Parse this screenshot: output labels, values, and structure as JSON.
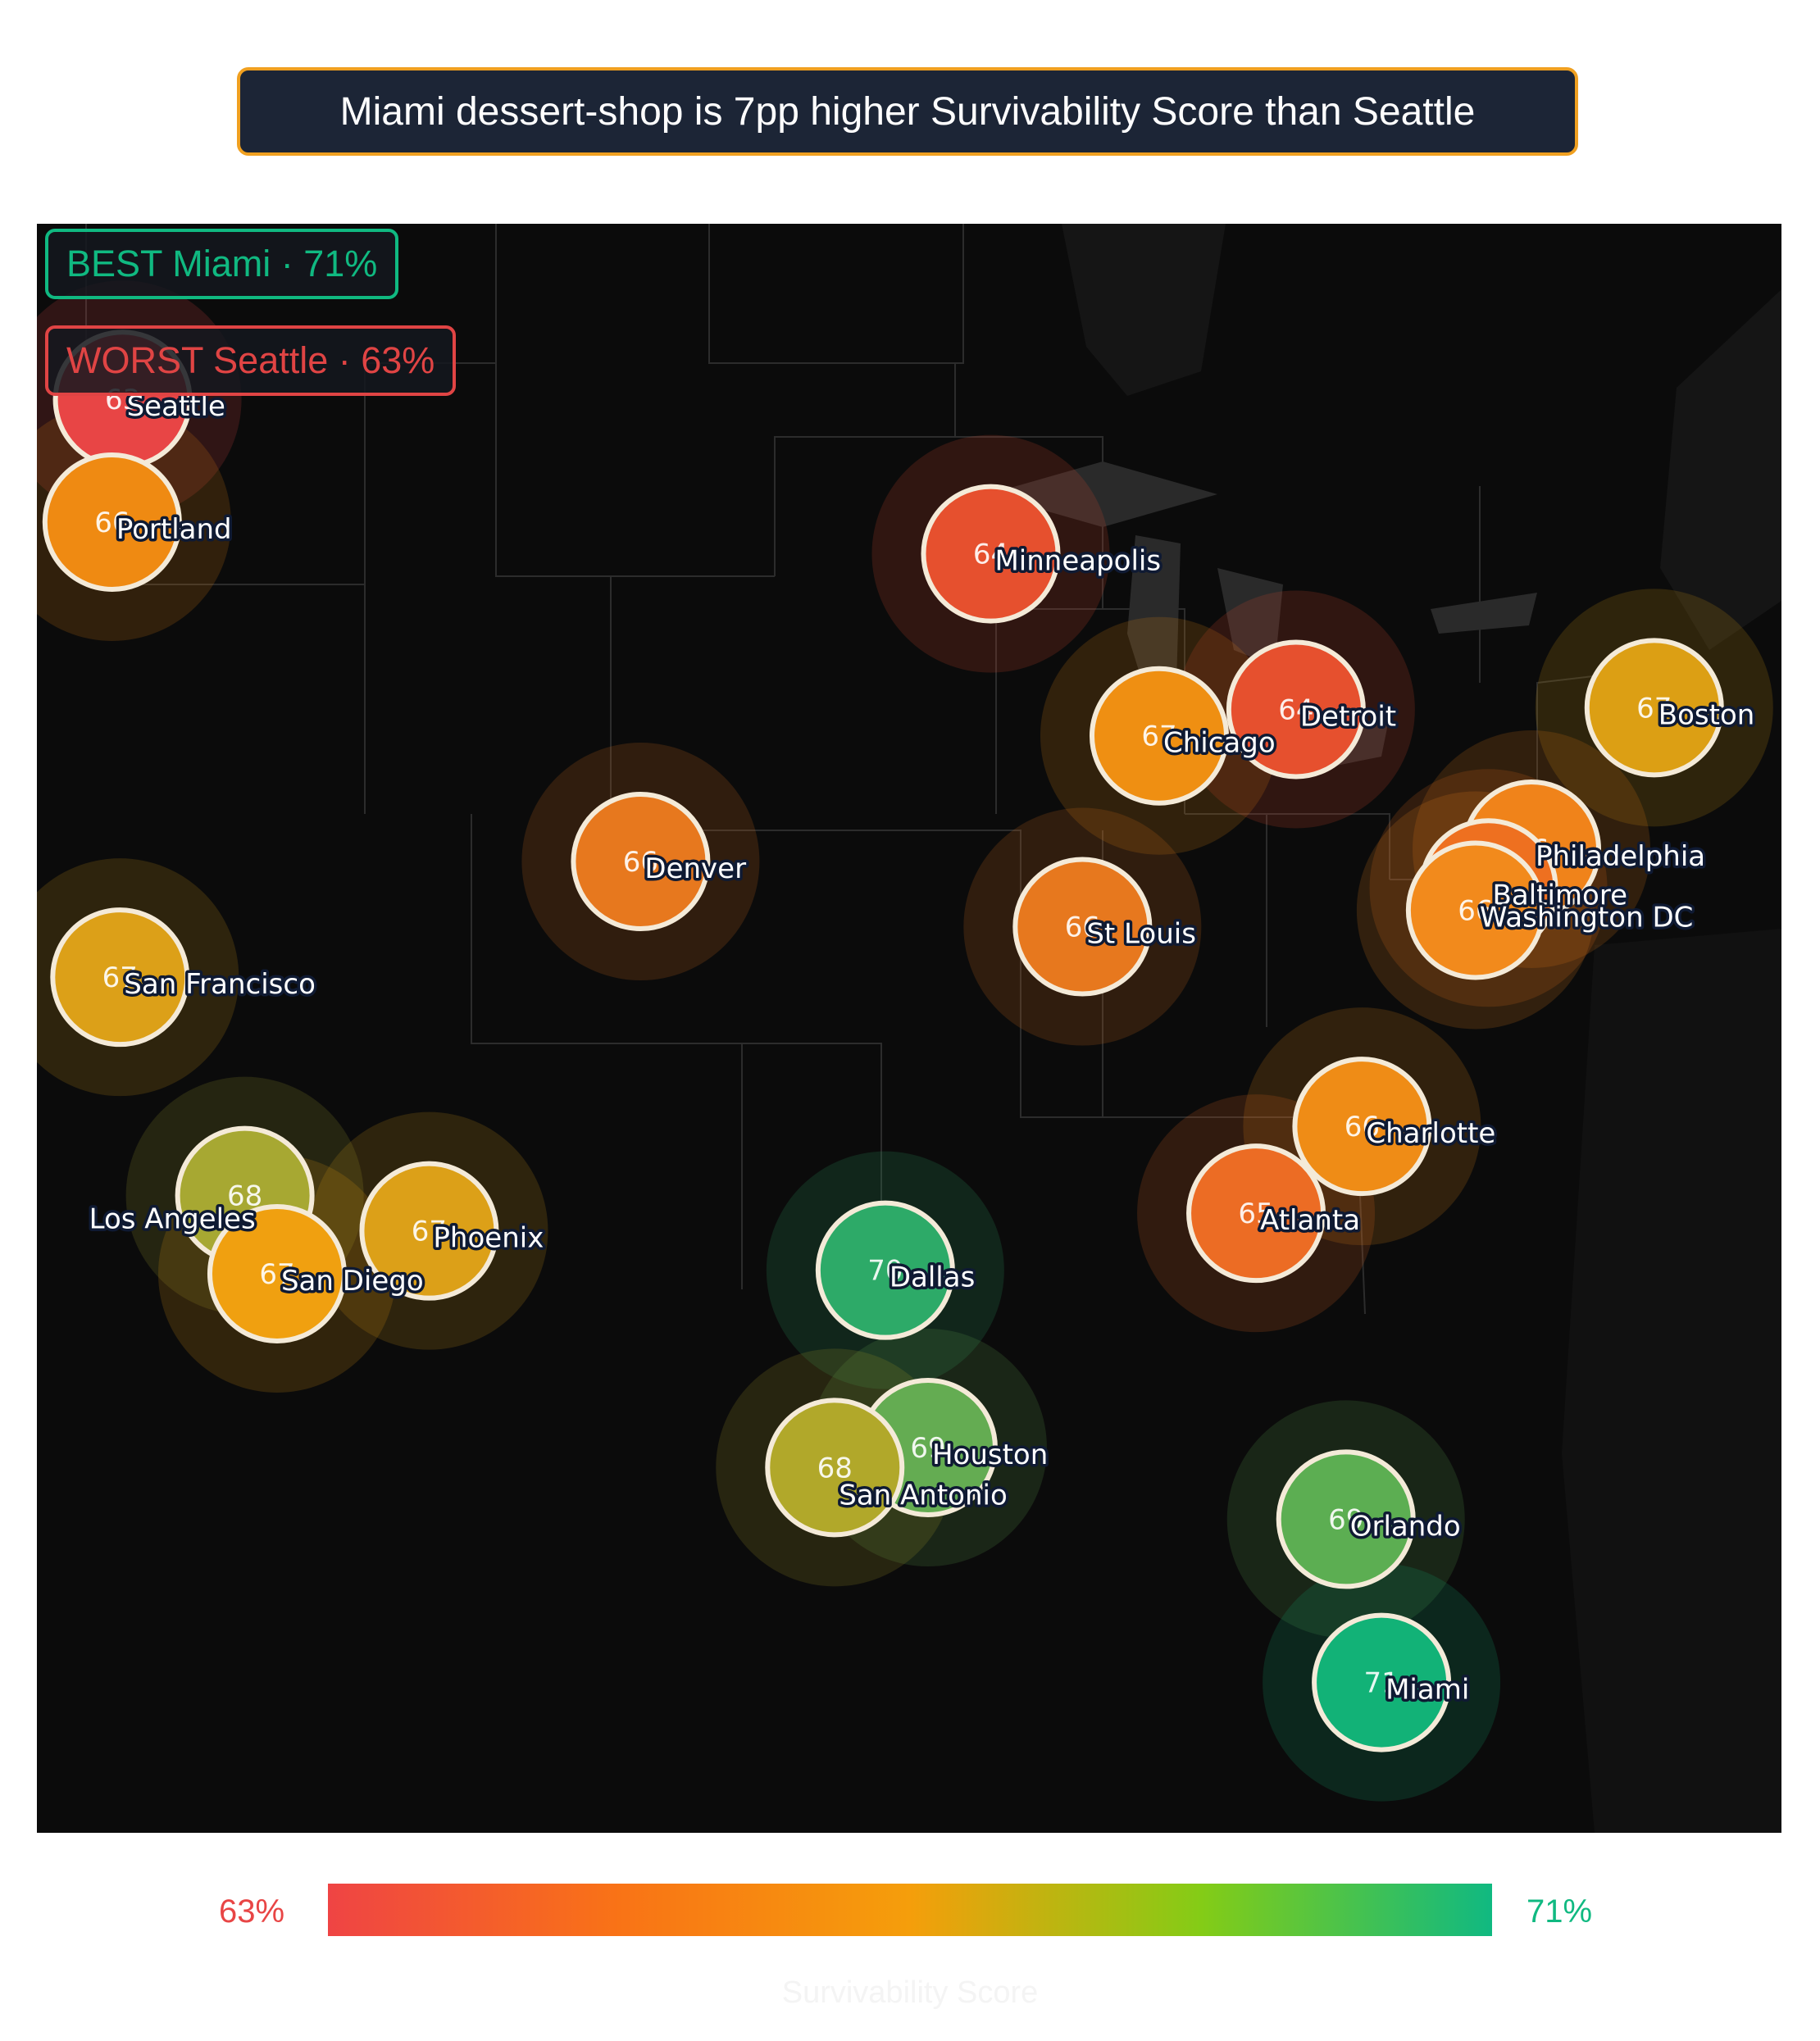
{
  "title": "Miami dessert-shop is 7pp higher Survivability Score than Seattle",
  "badges": {
    "best": "BEST  Miami · 71%",
    "worst": "WORST Seattle · 63%"
  },
  "colorbar": {
    "min_label": "63%",
    "max_label": "71%",
    "label": "Survivability Score",
    "min": 63,
    "max": 71
  },
  "colors": {
    "worst": "#ef4444",
    "mid": "#f59e0b",
    "best": "#10b981"
  },
  "chart_data": {
    "type": "scatter",
    "metric": "Survivability Score",
    "unit": "%",
    "points": [
      {
        "name": "Seattle",
        "value": 63,
        "lon": -122.33,
        "lat": 47.61,
        "color": "#e84545"
      },
      {
        "name": "Portland",
        "value": 66,
        "lon": -122.68,
        "lat": 45.52,
        "color": "#ef8a12"
      },
      {
        "name": "Minneapolis",
        "value": 64,
        "lon": -93.27,
        "lat": 44.98,
        "color": "#e6502e"
      },
      {
        "name": "Chicago",
        "value": 67,
        "lon": -87.63,
        "lat": 41.88,
        "color": "#ef8f12"
      },
      {
        "name": "Detroit",
        "value": 64,
        "lon": -83.05,
        "lat": 42.33,
        "color": "#e6502e"
      },
      {
        "name": "Boston",
        "value": 67,
        "lon": -71.06,
        "lat": 42.36,
        "color": "#dc9f14"
      },
      {
        "name": "Denver",
        "value": 66,
        "lon": -104.99,
        "lat": 39.74,
        "color": "#e7781e"
      },
      {
        "name": "St Louis",
        "value": 66,
        "lon": -90.2,
        "lat": 38.63,
        "color": "#e7781e"
      },
      {
        "name": "Philadelphia",
        "value": 66,
        "lon": -75.17,
        "lat": 39.95,
        "color": "#f0831a"
      },
      {
        "name": "Baltimore",
        "value": 65,
        "lon": -76.61,
        "lat": 39.29,
        "color": "#ee7020"
      },
      {
        "name": "Washington DC",
        "value": 66,
        "lon": -77.04,
        "lat": 38.91,
        "color": "#f28a1c"
      },
      {
        "name": "San Francisco",
        "value": 67,
        "lon": -122.42,
        "lat": 37.77,
        "color": "#dca018"
      },
      {
        "name": "Charlotte",
        "value": 66,
        "lon": -80.84,
        "lat": 35.23,
        "color": "#ef8c16"
      },
      {
        "name": "Atlanta",
        "value": 65,
        "lon": -84.39,
        "lat": 33.75,
        "color": "#ec6c24"
      },
      {
        "name": "Los Angeles",
        "value": 68,
        "lon": -118.24,
        "lat": 34.05,
        "color": "#a7a832"
      },
      {
        "name": "Phoenix",
        "value": 67,
        "lon": -112.07,
        "lat": 33.45,
        "color": "#dca018"
      },
      {
        "name": "San Diego",
        "value": 67,
        "lon": -117.16,
        "lat": 32.72,
        "color": "#f0a010"
      },
      {
        "name": "Dallas",
        "value": 70,
        "lon": -96.8,
        "lat": 32.78,
        "color": "#2daa68"
      },
      {
        "name": "Houston",
        "value": 69,
        "lon": -95.37,
        "lat": 29.76,
        "color": "#64ac52"
      },
      {
        "name": "San Antonio",
        "value": 68,
        "lon": -98.49,
        "lat": 29.42,
        "color": "#b1a82a"
      },
      {
        "name": "Orlando",
        "value": 69,
        "lon": -81.38,
        "lat": 28.54,
        "color": "#5cae52"
      },
      {
        "name": "Miami",
        "value": 71,
        "lon": -80.19,
        "lat": 25.76,
        "color": "#12b277"
      }
    ]
  }
}
